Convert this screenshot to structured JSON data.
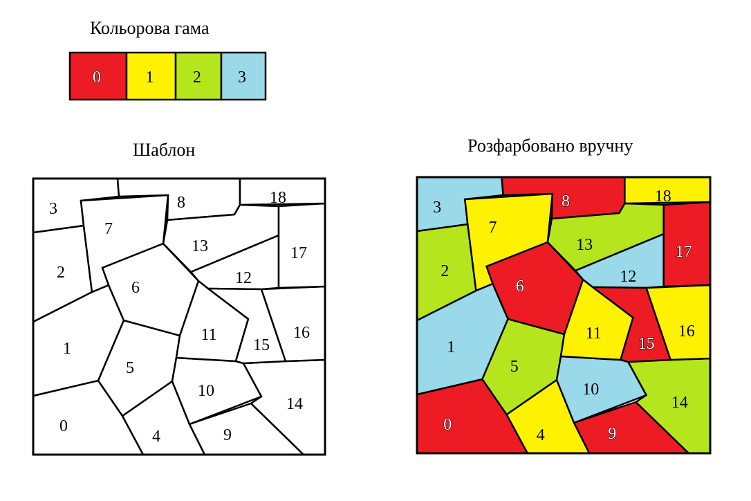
{
  "titles": {
    "palette": "Кольорова гама",
    "template": "Шаблон",
    "colored": "Розфарбовано вручну"
  },
  "palette": [
    {
      "label": "0",
      "color": "#ed1c24"
    },
    {
      "label": "1",
      "color": "#fff200"
    },
    {
      "label": "2",
      "color": "#b5e61d"
    },
    {
      "label": "3",
      "color": "#99d9ea"
    }
  ],
  "regions": [
    {
      "id": "0",
      "color_index": 0
    },
    {
      "id": "1",
      "color_index": 3
    },
    {
      "id": "2",
      "color_index": 2
    },
    {
      "id": "3",
      "color_index": 3
    },
    {
      "id": "4",
      "color_index": 1
    },
    {
      "id": "5",
      "color_index": 2
    },
    {
      "id": "6",
      "color_index": 0
    },
    {
      "id": "7",
      "color_index": 1
    },
    {
      "id": "8",
      "color_index": 0
    },
    {
      "id": "9",
      "color_index": 0
    },
    {
      "id": "10",
      "color_index": 3
    },
    {
      "id": "11",
      "color_index": 1
    },
    {
      "id": "12",
      "color_index": 3
    },
    {
      "id": "13",
      "color_index": 2
    },
    {
      "id": "14",
      "color_index": 2
    },
    {
      "id": "15",
      "color_index": 0
    },
    {
      "id": "16",
      "color_index": 1
    },
    {
      "id": "17",
      "color_index": 0
    },
    {
      "id": "18",
      "color_index": 1
    }
  ]
}
